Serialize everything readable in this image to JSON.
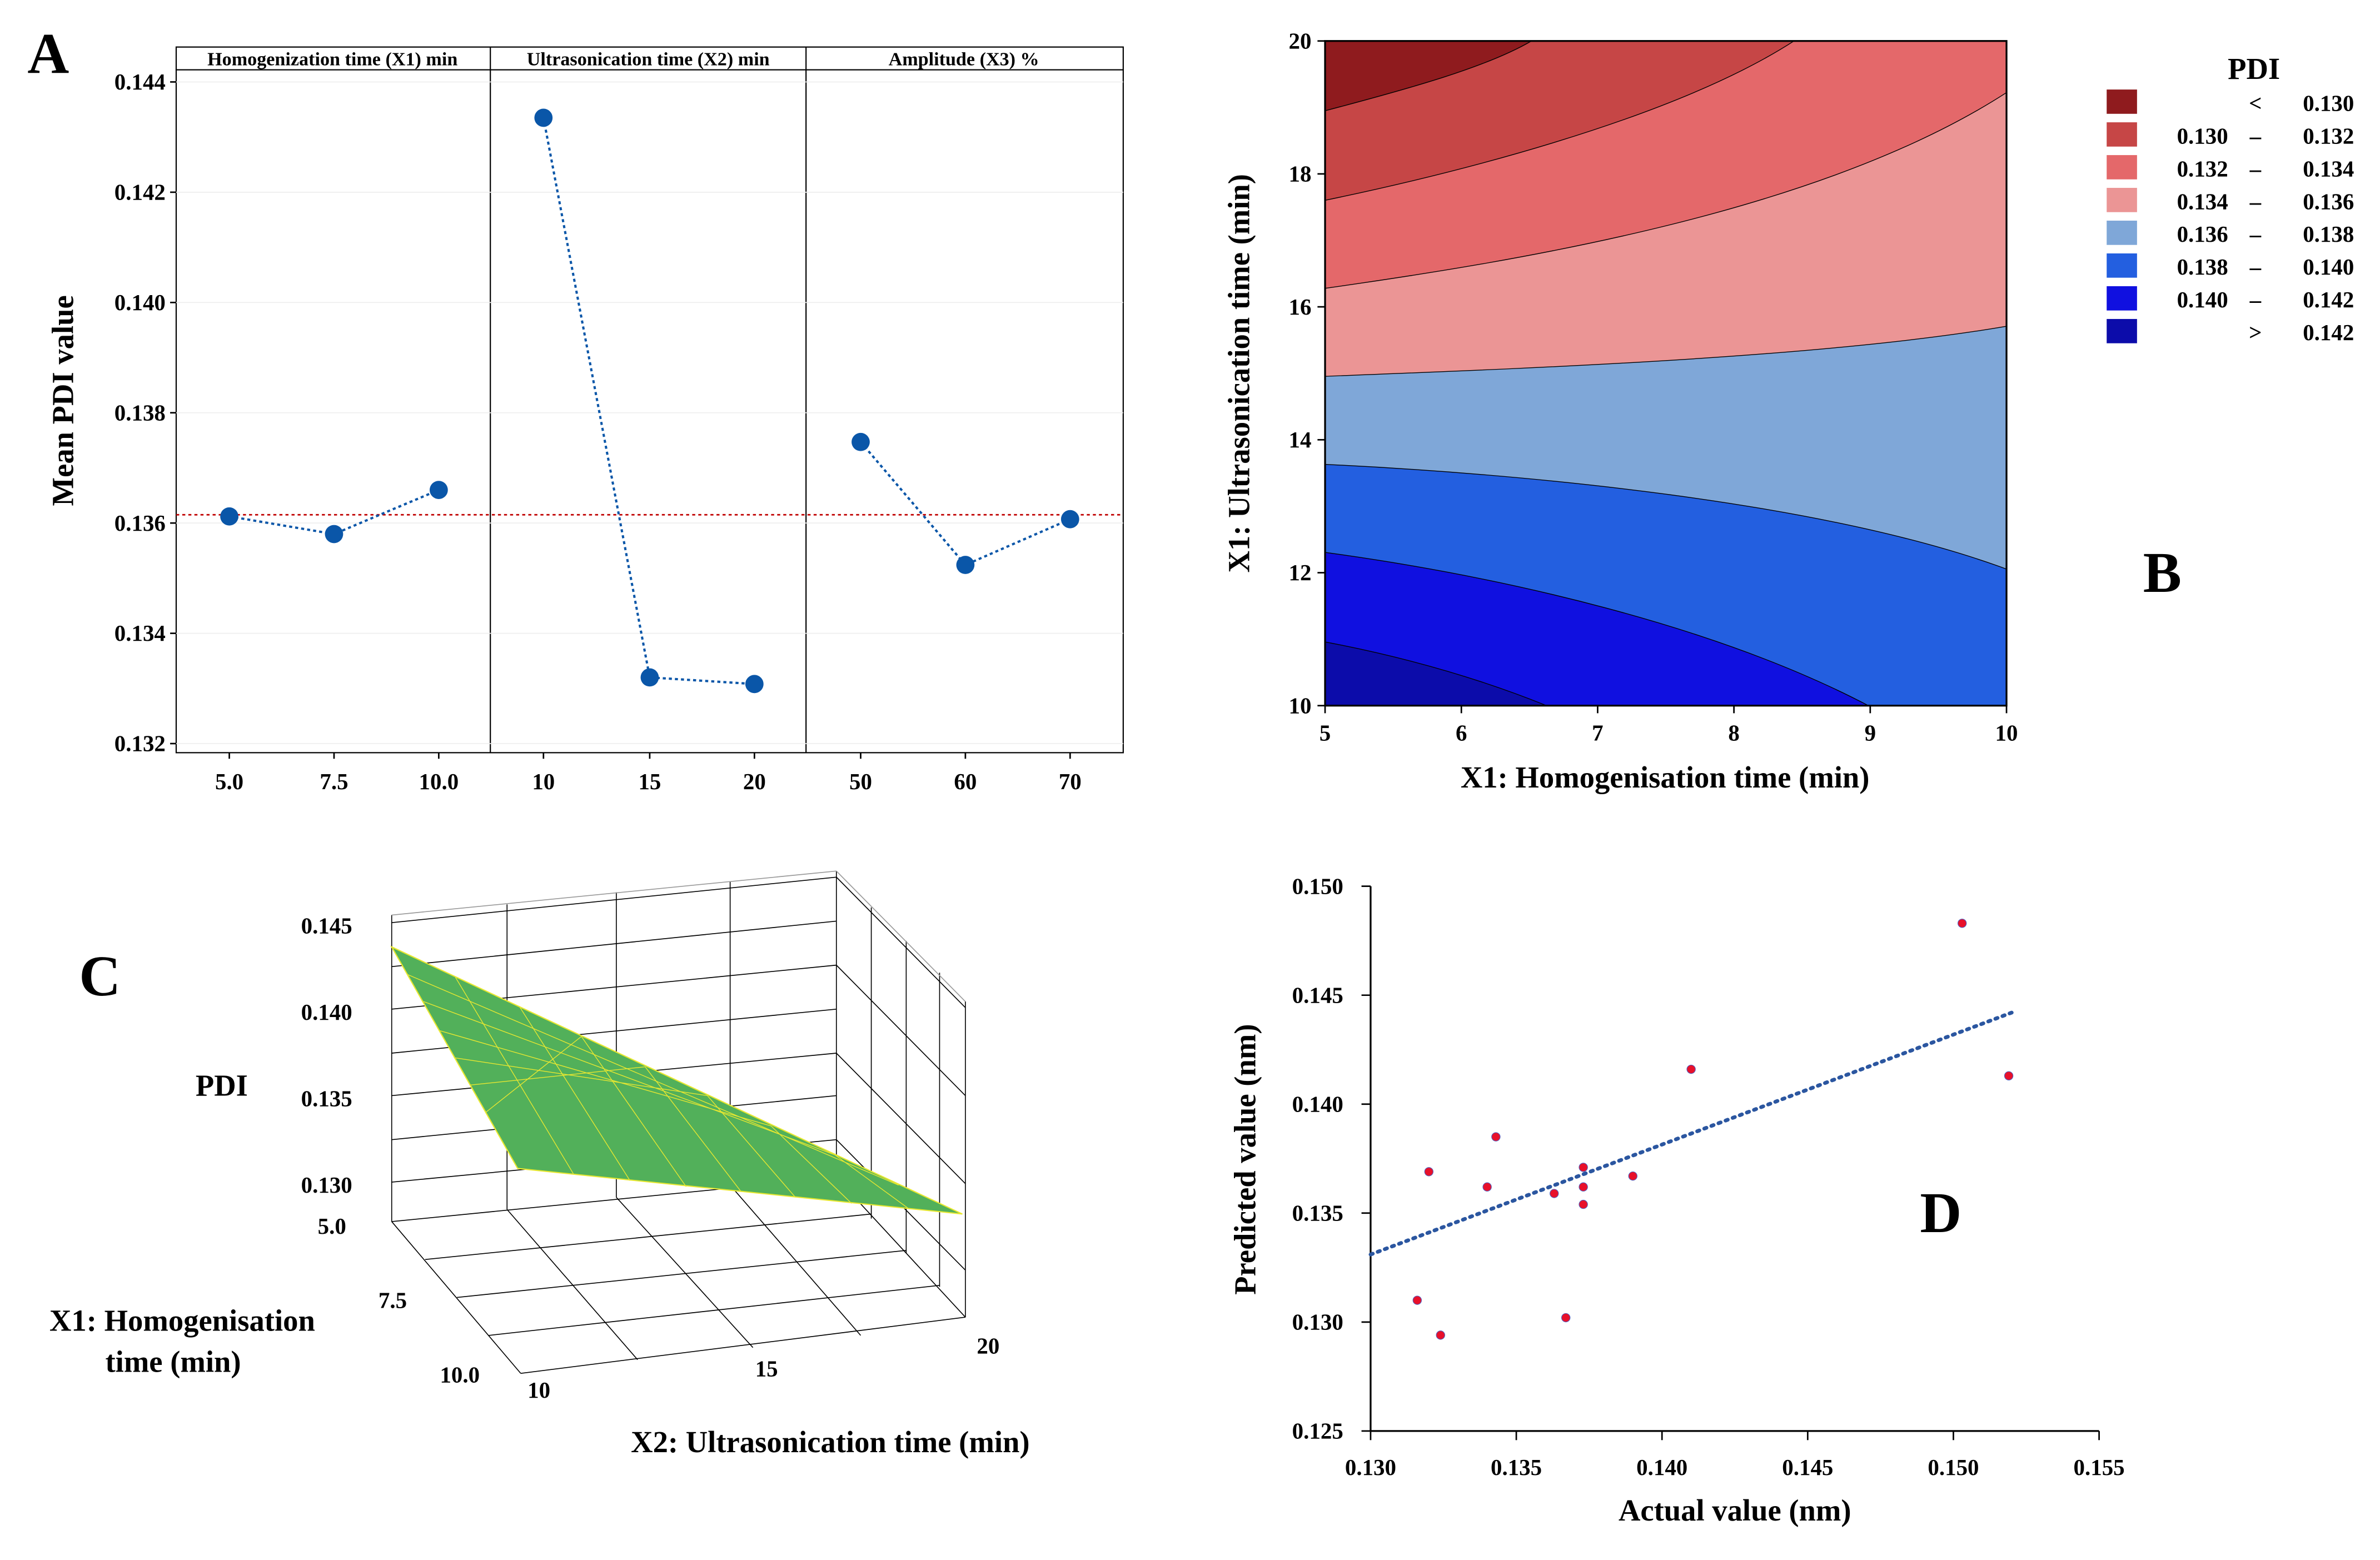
{
  "chart_data": [
    {
      "panel": "A",
      "type": "line",
      "panel_label": "A",
      "ylabel": "Mean PDI value",
      "ylim": [
        0.132,
        0.144
      ],
      "yticks": [
        "0.132",
        "0.134",
        "0.136",
        "0.138",
        "0.140",
        "0.142",
        "0.144"
      ],
      "mean_line": 0.13615,
      "facets": [
        {
          "title": "Homogenization time (X1) min",
          "x": [
            "5.0",
            "7.5",
            "10.0"
          ],
          "values": [
            0.13612,
            0.1358,
            0.1366
          ]
        },
        {
          "title": "Ultrasonication time (X2) min",
          "x": [
            "10",
            "15",
            "20"
          ],
          "values": [
            0.14335,
            0.1332,
            0.13308
          ]
        },
        {
          "title": "Amplitude (X3) %",
          "x": [
            "50",
            "60",
            "70"
          ],
          "values": [
            0.13747,
            0.13524,
            0.13607
          ]
        }
      ],
      "colors": {
        "points": "#0a56a8",
        "mean": "#c00000"
      }
    },
    {
      "panel": "B",
      "type": "contour",
      "panel_label": "B",
      "xlabel": "X1: Homogenisation time (min)",
      "ylabel": "X1: Ultrasonication time (min)",
      "xlim": [
        5,
        10
      ],
      "ylim": [
        10,
        20
      ],
      "xticks": [
        "5",
        "6",
        "7",
        "8",
        "9",
        "10"
      ],
      "yticks": [
        "10",
        "12",
        "14",
        "16",
        "18",
        "20"
      ],
      "legend_title": "PDI",
      "legend": [
        {
          "lo": "",
          "sep": "<",
          "hi": "0.130",
          "color": "#8f1b1e"
        },
        {
          "lo": "0.130",
          "sep": "–",
          "hi": "0.132",
          "color": "#c64646"
        },
        {
          "lo": "0.132",
          "sep": "–",
          "hi": "0.134",
          "color": "#e4686a"
        },
        {
          "lo": "0.134",
          "sep": "–",
          "hi": "0.136",
          "color": "#eb9595"
        },
        {
          "lo": "0.136",
          "sep": "–",
          "hi": "0.138",
          "color": "#7fa7d8"
        },
        {
          "lo": "0.138",
          "sep": "–",
          "hi": "0.140",
          "color": "#235fe0"
        },
        {
          "lo": "0.140",
          "sep": "–",
          "hi": "0.142",
          "color": "#1010e0"
        },
        {
          "lo": "",
          "sep": ">",
          "hi": "0.142",
          "color": "#0c0caa"
        }
      ]
    },
    {
      "panel": "C",
      "type": "surface",
      "panel_label": "C",
      "zlabel": "PDI",
      "zticks": [
        "0.145",
        "0.140",
        "0.135",
        "0.130"
      ],
      "x1label_line1": "X1: Homogenisation",
      "x1label_line2": "time (min)",
      "x1ticks": [
        "5.0",
        "7.5",
        "10.0"
      ],
      "x2label": "X2: Ultrasonication time (min)",
      "x2ticks": [
        "10",
        "15",
        "20"
      ],
      "colors": {
        "surface": "#52b05a",
        "mesh": "#e8e830"
      }
    },
    {
      "panel": "D",
      "type": "scatter",
      "panel_label": "D",
      "xlabel": "Actual value (nm)",
      "ylabel": "Predicted value (nm)",
      "xlim": [
        0.13,
        0.155
      ],
      "ylim": [
        0.125,
        0.15
      ],
      "xticks": [
        "0.130",
        "0.135",
        "0.140",
        "0.145",
        "0.150",
        "0.155"
      ],
      "yticks": [
        "0.125",
        "0.130",
        "0.135",
        "0.140",
        "0.145",
        "0.150"
      ],
      "points": [
        [
          0.1503,
          0.1483
        ],
        [
          0.1519,
          0.1413
        ],
        [
          0.141,
          0.1416
        ],
        [
          0.1343,
          0.1385
        ],
        [
          0.132,
          0.1369
        ],
        [
          0.134,
          0.1362
        ],
        [
          0.1363,
          0.1359
        ],
        [
          0.1373,
          0.1371
        ],
        [
          0.1373,
          0.1362
        ],
        [
          0.1373,
          0.1354
        ],
        [
          0.139,
          0.1367
        ],
        [
          0.1316,
          0.131
        ],
        [
          0.1324,
          0.1294
        ],
        [
          0.1367,
          0.1302
        ]
      ],
      "trendline": [
        [
          0.13,
          0.1331
        ],
        [
          0.152,
          0.1442
        ]
      ],
      "colors": {
        "points": "#e8102a",
        "trend": "#2b56a0"
      }
    }
  ]
}
